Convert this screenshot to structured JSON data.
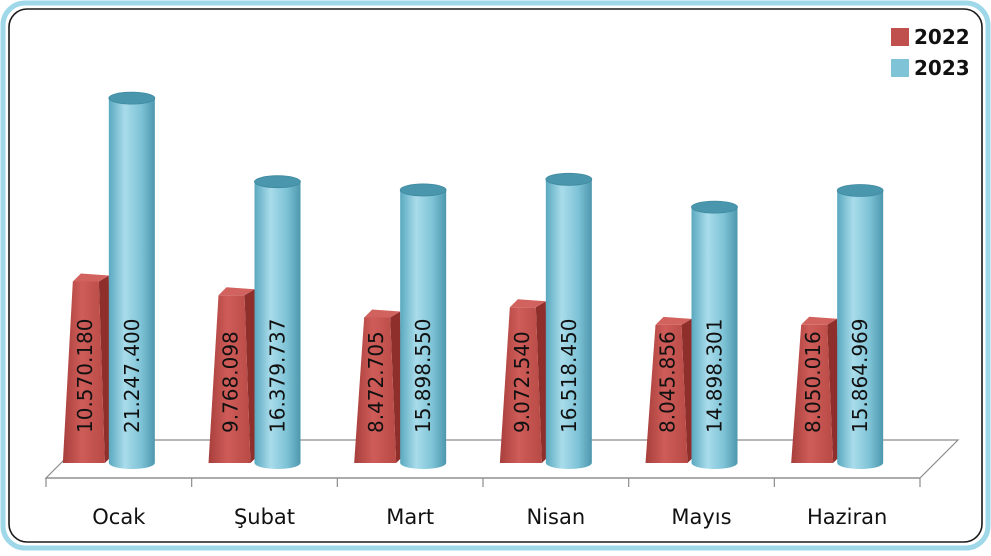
{
  "chart_data": {
    "type": "bar",
    "title": "",
    "xlabel": "",
    "ylabel": "",
    "categories": [
      "Ocak",
      "Şubat",
      "Mart",
      "Nisan",
      "Mayıs",
      "Haziran"
    ],
    "series": [
      {
        "name": "2022",
        "color": "#c0504d",
        "values": [
          10570180,
          9768098,
          8472705,
          9072540,
          8045856,
          8050016
        ],
        "labels": [
          "10.570.180",
          "9.768.098",
          "8.472.705",
          "9.072.540",
          "8.045.856",
          "8.050.016"
        ]
      },
      {
        "name": "2023",
        "color": "#7ec3d6",
        "values": [
          21247400,
          16379737,
          15898550,
          16518450,
          14898301,
          15864969
        ],
        "labels": [
          "21.247.400",
          "16.379.737",
          "15.898.550",
          "16.518.450",
          "14.898.301",
          "15.864.969"
        ]
      }
    ],
    "ylim": [
      0,
      23000000
    ],
    "grid": false,
    "legend_position": "top-right",
    "style": "3d"
  }
}
